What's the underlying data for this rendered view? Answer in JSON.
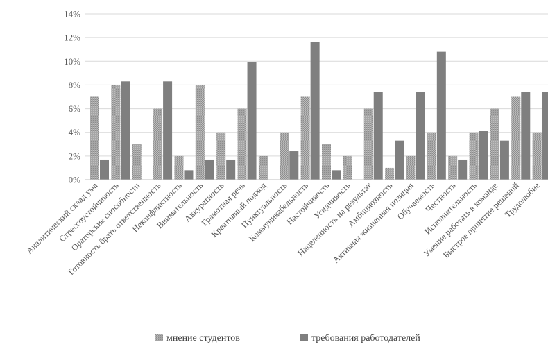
{
  "chart_data": {
    "type": "bar",
    "categories": [
      "Аналитический склад ума",
      "Стрессоустойчивость",
      "Ораторские способности",
      "Готовность брать ответственность",
      "Неконфликтность",
      "Внимательность",
      "Аккуратность",
      "Грамотная речь",
      "Креативный подход",
      "Пунктуальность",
      "Коммуникабельность",
      "Настойчивость",
      "Усидчивость",
      "Нацеленность на результат",
      "Амбициозность",
      "Активная жизненная позиция",
      "Обучаемость",
      "Честность",
      "Исполнительность",
      "Умение работать в команде",
      "Быстрое принятие решений",
      "Трудолюбие"
    ],
    "series": [
      {
        "name": "мнение студентов",
        "color": "#a6a6a6",
        "pattern": "dotted",
        "values": [
          7,
          8,
          3,
          6,
          2,
          8,
          4,
          6,
          2,
          4,
          7,
          3,
          2,
          6,
          1,
          2,
          4,
          2,
          4,
          6,
          7,
          4
        ]
      },
      {
        "name": "требования работодателей",
        "color": "#7f7f7f",
        "pattern": "solid",
        "values": [
          1.7,
          8.3,
          0,
          8.3,
          0.8,
          1.7,
          1.7,
          9.9,
          0,
          2.4,
          11.6,
          0.8,
          0,
          7.4,
          3.3,
          7.4,
          10.8,
          1.7,
          4.1,
          3.3,
          7.4,
          7.4
        ]
      }
    ],
    "ylim": [
      0,
      14
    ],
    "yticks": [
      "0%",
      "2%",
      "4%",
      "6%",
      "8%",
      "10%",
      "12%",
      "14%"
    ],
    "ytick_values": [
      0,
      2,
      4,
      6,
      8,
      10,
      12,
      14
    ],
    "grid": true,
    "legend_position": "bottom"
  }
}
